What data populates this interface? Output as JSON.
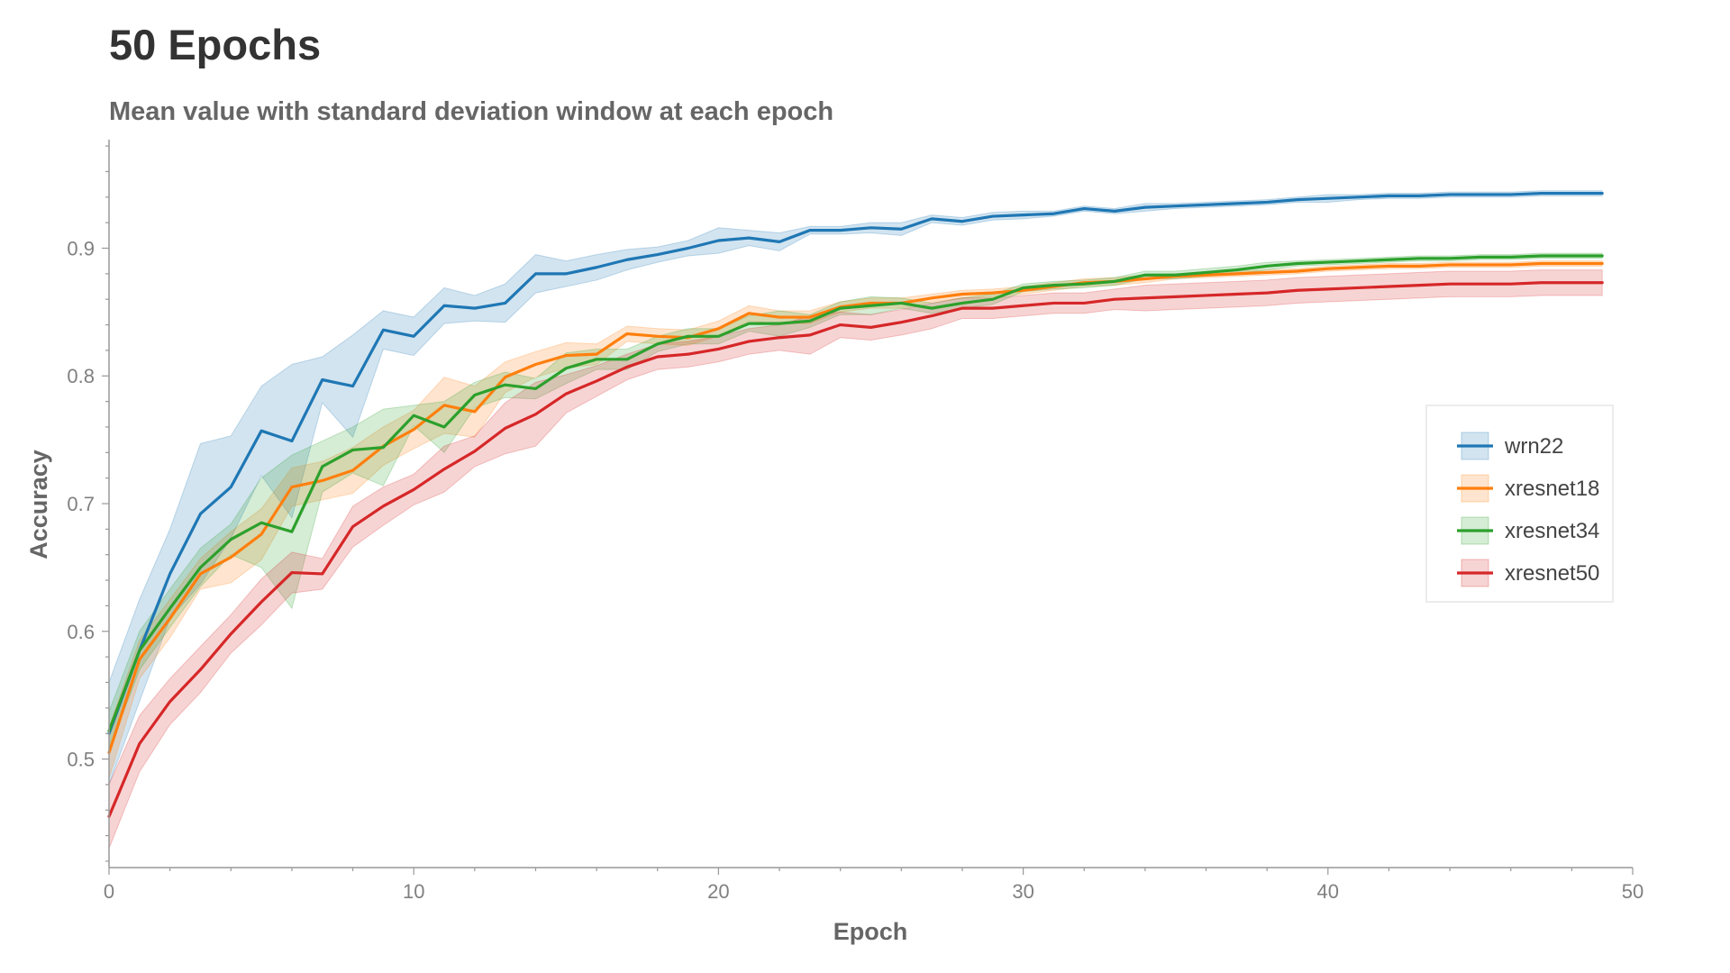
{
  "chart_data": {
    "type": "line",
    "title": "50 Epochs",
    "subtitle": "Mean value with standard deviation window at each epoch",
    "xlabel": "Epoch",
    "ylabel": "Accuracy",
    "xlim": [
      0,
      50
    ],
    "ylim": [
      0.415,
      0.985
    ],
    "xticks": [
      0,
      10,
      20,
      30,
      40,
      50
    ],
    "yticks": [
      0.5,
      0.6,
      0.7,
      0.8,
      0.9
    ],
    "grid": false,
    "legend_position": "right",
    "x": [
      0,
      1,
      2,
      3,
      4,
      5,
      6,
      7,
      8,
      9,
      10,
      11,
      12,
      13,
      14,
      15,
      16,
      17,
      18,
      19,
      20,
      21,
      22,
      23,
      24,
      25,
      26,
      27,
      28,
      29,
      30,
      31,
      32,
      33,
      34,
      35,
      36,
      37,
      38,
      39,
      40,
      41,
      42,
      43,
      44,
      45,
      46,
      47,
      48,
      49
    ],
    "series": [
      {
        "name": "wrn22",
        "color": "#1f77b4",
        "values": [
          0.52,
          0.585,
          0.645,
          0.692,
          0.713,
          0.757,
          0.749,
          0.797,
          0.792,
          0.836,
          0.831,
          0.855,
          0.853,
          0.857,
          0.88,
          0.88,
          0.885,
          0.891,
          0.895,
          0.9,
          0.906,
          0.908,
          0.905,
          0.914,
          0.914,
          0.916,
          0.915,
          0.923,
          0.921,
          0.925,
          0.926,
          0.927,
          0.931,
          0.929,
          0.932,
          0.933,
          0.934,
          0.935,
          0.936,
          0.938,
          0.939,
          0.94,
          0.941,
          0.941,
          0.942,
          0.942,
          0.942,
          0.943,
          0.943,
          0.943
        ],
        "std": [
          0.04,
          0.04,
          0.035,
          0.055,
          0.04,
          0.035,
          0.06,
          0.018,
          0.04,
          0.015,
          0.015,
          0.014,
          0.01,
          0.015,
          0.015,
          0.01,
          0.01,
          0.008,
          0.006,
          0.006,
          0.01,
          0.006,
          0.007,
          0.003,
          0.003,
          0.004,
          0.005,
          0.003,
          0.003,
          0.003,
          0.003,
          0.002,
          0.002,
          0.002,
          0.003,
          0.002,
          0.002,
          0.002,
          0.002,
          0.002,
          0.003,
          0.002,
          0.002,
          0.002,
          0.002,
          0.002,
          0.002,
          0.002,
          0.002,
          0.002
        ]
      },
      {
        "name": "xresnet18",
        "color": "#ff7f0e",
        "values": [
          0.505,
          0.578,
          0.61,
          0.645,
          0.658,
          0.676,
          0.713,
          0.718,
          0.726,
          0.745,
          0.758,
          0.777,
          0.772,
          0.799,
          0.809,
          0.816,
          0.817,
          0.833,
          0.831,
          0.83,
          0.837,
          0.849,
          0.846,
          0.846,
          0.854,
          0.857,
          0.857,
          0.861,
          0.864,
          0.865,
          0.867,
          0.87,
          0.873,
          0.874,
          0.876,
          0.878,
          0.879,
          0.88,
          0.881,
          0.882,
          0.884,
          0.885,
          0.886,
          0.886,
          0.887,
          0.887,
          0.887,
          0.888,
          0.888,
          0.888
        ],
        "std": [
          0.02,
          0.015,
          0.015,
          0.012,
          0.02,
          0.02,
          0.015,
          0.015,
          0.018,
          0.015,
          0.015,
          0.022,
          0.02,
          0.012,
          0.01,
          0.01,
          0.008,
          0.006,
          0.006,
          0.006,
          0.006,
          0.006,
          0.005,
          0.005,
          0.004,
          0.004,
          0.004,
          0.003,
          0.003,
          0.003,
          0.003,
          0.003,
          0.003,
          0.003,
          0.003,
          0.002,
          0.002,
          0.002,
          0.002,
          0.002,
          0.002,
          0.002,
          0.002,
          0.002,
          0.002,
          0.002,
          0.002,
          0.002,
          0.002,
          0.002
        ]
      },
      {
        "name": "xresnet34",
        "color": "#2ca02c",
        "values": [
          0.522,
          0.585,
          0.618,
          0.65,
          0.672,
          0.685,
          0.678,
          0.729,
          0.742,
          0.744,
          0.769,
          0.76,
          0.785,
          0.793,
          0.79,
          0.806,
          0.813,
          0.813,
          0.825,
          0.831,
          0.831,
          0.841,
          0.841,
          0.843,
          0.853,
          0.855,
          0.857,
          0.853,
          0.857,
          0.86,
          0.869,
          0.871,
          0.872,
          0.874,
          0.879,
          0.879,
          0.881,
          0.883,
          0.886,
          0.888,
          0.889,
          0.89,
          0.891,
          0.892,
          0.892,
          0.893,
          0.893,
          0.894,
          0.894,
          0.894
        ],
        "std": [
          0.015,
          0.015,
          0.015,
          0.015,
          0.012,
          0.035,
          0.06,
          0.02,
          0.018,
          0.03,
          0.008,
          0.02,
          0.01,
          0.01,
          0.008,
          0.012,
          0.008,
          0.008,
          0.006,
          0.006,
          0.006,
          0.006,
          0.01,
          0.005,
          0.005,
          0.007,
          0.004,
          0.004,
          0.004,
          0.004,
          0.003,
          0.003,
          0.003,
          0.003,
          0.003,
          0.003,
          0.003,
          0.003,
          0.003,
          0.002,
          0.002,
          0.002,
          0.002,
          0.002,
          0.002,
          0.002,
          0.002,
          0.002,
          0.002,
          0.002
        ]
      },
      {
        "name": "xresnet50",
        "color": "#d62728",
        "values": [
          0.455,
          0.512,
          0.545,
          0.57,
          0.598,
          0.623,
          0.646,
          0.645,
          0.682,
          0.698,
          0.711,
          0.727,
          0.741,
          0.759,
          0.77,
          0.786,
          0.796,
          0.807,
          0.815,
          0.817,
          0.821,
          0.827,
          0.83,
          0.832,
          0.84,
          0.838,
          0.842,
          0.847,
          0.853,
          0.853,
          0.855,
          0.857,
          0.857,
          0.86,
          0.861,
          0.862,
          0.863,
          0.864,
          0.865,
          0.867,
          0.868,
          0.869,
          0.87,
          0.871,
          0.872,
          0.872,
          0.872,
          0.873,
          0.873,
          0.873
        ],
        "std": [
          0.025,
          0.022,
          0.018,
          0.018,
          0.015,
          0.018,
          0.016,
          0.012,
          0.016,
          0.015,
          0.012,
          0.018,
          0.012,
          0.02,
          0.025,
          0.015,
          0.012,
          0.01,
          0.01,
          0.01,
          0.01,
          0.01,
          0.01,
          0.015,
          0.01,
          0.01,
          0.01,
          0.01,
          0.008,
          0.008,
          0.008,
          0.008,
          0.008,
          0.008,
          0.01,
          0.01,
          0.01,
          0.01,
          0.01,
          0.01,
          0.01,
          0.01,
          0.01,
          0.01,
          0.01,
          0.01,
          0.01,
          0.01,
          0.01,
          0.01
        ]
      }
    ]
  }
}
